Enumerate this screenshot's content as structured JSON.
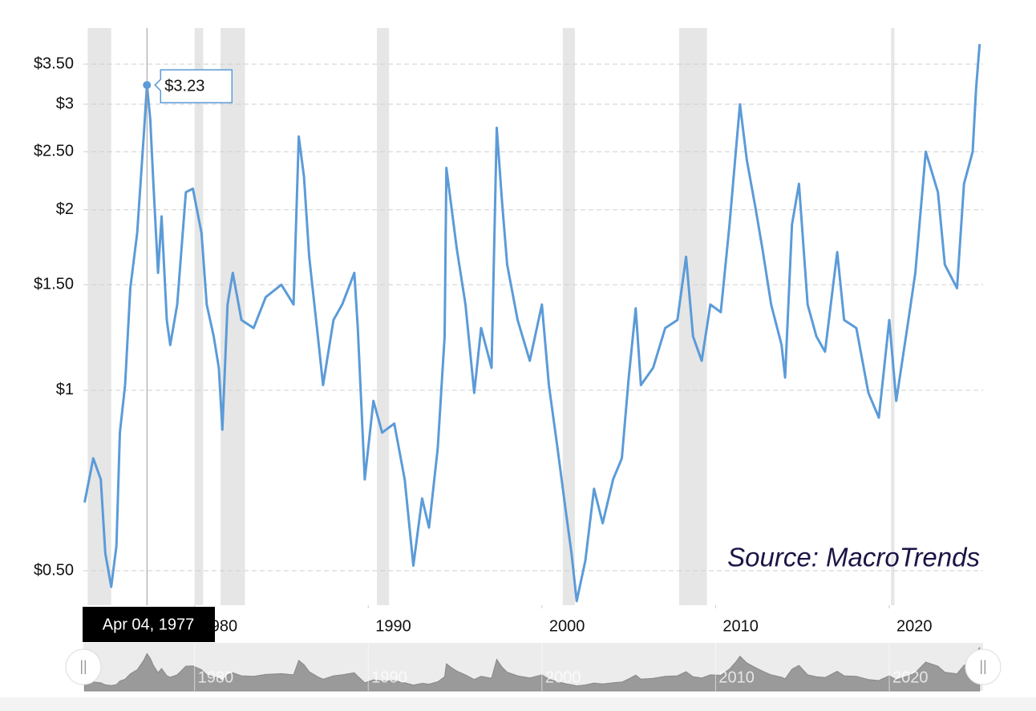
{
  "chart_data": {
    "type": "line",
    "log_y": true,
    "grid": true,
    "annotation": "Source: MacroTrends",
    "xlim": [
      1973.6,
      2025.4
    ],
    "ylim": [
      0.438,
      4.02
    ],
    "xticks": [
      1980,
      1990,
      2000,
      2010,
      2020
    ],
    "yticks": [
      {
        "value": 0.5,
        "label": "$0.50"
      },
      {
        "value": 1,
        "label": "$1"
      },
      {
        "value": 1.5,
        "label": "$1.50"
      },
      {
        "value": 2,
        "label": "$2"
      },
      {
        "value": 2.5,
        "label": "$2.50"
      },
      {
        "value": 3,
        "label": "$3"
      },
      {
        "value": 3.5,
        "label": "$3.50"
      }
    ],
    "recessions": [
      [
        1973.85,
        1975.2
      ],
      [
        1980.0,
        1980.5
      ],
      [
        1981.5,
        1982.9
      ],
      [
        1990.5,
        1991.2
      ],
      [
        2001.2,
        2001.9
      ],
      [
        2007.9,
        2009.5
      ],
      [
        2020.1,
        2020.3
      ]
    ],
    "tooltip": {
      "x": 1977.26,
      "label": "Apr 04, 1977",
      "value": 3.23,
      "value_label": "$3.23"
    },
    "x": [
      1973.67,
      1974.17,
      1974.6,
      1974.86,
      1975.2,
      1975.5,
      1975.7,
      1976.0,
      1976.3,
      1976.7,
      1977.07,
      1977.26,
      1977.45,
      1977.63,
      1977.9,
      1978.1,
      1978.4,
      1978.6,
      1979.0,
      1979.5,
      1979.9,
      1980.4,
      1980.7,
      1981.1,
      1981.4,
      1981.6,
      1981.9,
      1982.2,
      1982.7,
      1983.4,
      1984.1,
      1985.0,
      1985.7,
      1986.0,
      1986.3,
      1986.6,
      1987.1,
      1987.4,
      1988.0,
      1988.5,
      1989.2,
      1989.4,
      1989.8,
      1990.3,
      1990.8,
      1991.5,
      1992.1,
      1992.6,
      1993.1,
      1993.5,
      1994.0,
      1994.4,
      1994.5,
      1994.8,
      1995.1,
      1995.6,
      1996.1,
      1996.5,
      1997.1,
      1997.4,
      1997.7,
      1998.0,
      1998.6,
      1999.3,
      2000.0,
      2000.4,
      2000.9,
      2001.4,
      2001.7,
      2002.0,
      2002.5,
      2003.0,
      2003.5,
      2004.1,
      2004.6,
      2005.0,
      2005.4,
      2005.7,
      2006.4,
      2007.1,
      2007.8,
      2008.3,
      2008.7,
      2009.2,
      2009.7,
      2010.3,
      2010.8,
      2011.2,
      2011.4,
      2011.8,
      2012.3,
      2012.7,
      2013.2,
      2013.8,
      2014.0,
      2014.4,
      2014.8,
      2015.3,
      2015.8,
      2016.3,
      2017.0,
      2017.4,
      2018.1,
      2018.8,
      2019.4,
      2020.0,
      2020.4,
      2021.1,
      2021.5,
      2022.1,
      2022.8,
      2023.2,
      2023.9,
      2024.3,
      2024.8,
      2025.0,
      2025.2
    ],
    "series": [
      {
        "color": "#5b9bd8",
        "values": [
          0.65,
          0.77,
          0.71,
          0.535,
          0.47,
          0.55,
          0.85,
          1.02,
          1.48,
          1.83,
          2.65,
          3.23,
          2.83,
          2.21,
          1.57,
          1.95,
          1.31,
          1.19,
          1.39,
          2.14,
          2.17,
          1.83,
          1.39,
          1.23,
          1.09,
          0.86,
          1.39,
          1.57,
          1.31,
          1.27,
          1.43,
          1.5,
          1.39,
          2.65,
          2.27,
          1.67,
          1.23,
          1.02,
          1.31,
          1.39,
          1.57,
          1.27,
          0.71,
          0.96,
          0.85,
          0.88,
          0.71,
          0.51,
          0.66,
          0.59,
          0.8,
          1.23,
          2.35,
          2.01,
          1.72,
          1.39,
          0.99,
          1.27,
          1.09,
          2.74,
          2.07,
          1.62,
          1.31,
          1.12,
          1.39,
          1.02,
          0.8,
          0.62,
          0.535,
          0.445,
          0.52,
          0.685,
          0.6,
          0.71,
          0.77,
          1.05,
          1.37,
          1.02,
          1.09,
          1.27,
          1.31,
          1.67,
          1.23,
          1.12,
          1.39,
          1.35,
          1.89,
          2.57,
          3.0,
          2.42,
          2.01,
          1.72,
          1.39,
          1.19,
          1.05,
          1.89,
          2.21,
          1.39,
          1.23,
          1.16,
          1.7,
          1.31,
          1.27,
          0.99,
          0.9,
          1.31,
          0.96,
          1.31,
          1.57,
          2.5,
          2.14,
          1.62,
          1.48,
          2.21,
          2.5,
          3.19,
          3.78
        ]
      }
    ]
  }
}
